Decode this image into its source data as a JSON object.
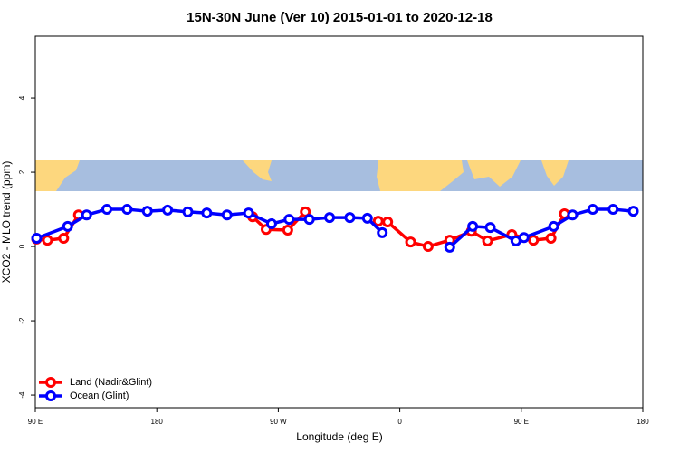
{
  "chart_data": {
    "type": "line",
    "title": "15N-30N June (Ver 10)   2015-01-01 to 2020-12-18",
    "x_label": "Longitude (deg E)",
    "y_label": "XCO2 - MLO trend (ppm)",
    "xlim": [
      90,
      540
    ],
    "ylim": [
      -4.34,
      5.66
    ],
    "xticks": [
      {
        "value": 90,
        "label": "90 E"
      },
      180,
      {
        "value": 270,
        "label": "90 W"
      },
      {
        "value": 360,
        "label": "0"
      },
      {
        "value": 450,
        "label": "90 E"
      },
      {
        "value": 540,
        "label": "180"
      }
    ],
    "yticks": [
      -4,
      -2,
      0,
      2,
      4
    ],
    "legend": "bottom-left",
    "series": [
      {
        "name": "Land (Nadir&Glint)",
        "color": "#ff0000",
        "x": [
          91,
          99,
          111,
          122,
          251,
          261,
          277,
          290,
          344,
          351,
          368,
          381,
          397,
          413,
          425,
          443,
          459,
          472,
          482
        ],
        "values": [
          0.2,
          0.17,
          0.22,
          0.85,
          0.8,
          0.46,
          0.44,
          0.93,
          0.68,
          0.66,
          0.12,
          0,
          0.17,
          0.41,
          0.15,
          0.32,
          0.17,
          0.22,
          0.88
        ]
      },
      {
        "name": "Ocean (Glint)",
        "color": "#0000ff",
        "x": [
          91,
          114,
          128,
          143,
          158,
          173,
          188,
          203,
          217,
          232,
          248,
          265,
          278,
          293,
          308,
          323,
          336,
          347,
          397,
          414,
          427,
          446,
          452,
          474,
          488,
          503,
          518,
          533
        ],
        "values": [
          0.22,
          0.54,
          0.85,
          1.0,
          1.0,
          0.95,
          0.98,
          0.93,
          0.9,
          0.85,
          0.9,
          0.61,
          0.73,
          0.73,
          0.78,
          0.78,
          0.76,
          0.37,
          -0.02,
          0.54,
          0.51,
          0.15,
          0.24,
          0.54,
          0.85,
          1.0,
          1.0,
          0.95
        ]
      }
    ]
  }
}
